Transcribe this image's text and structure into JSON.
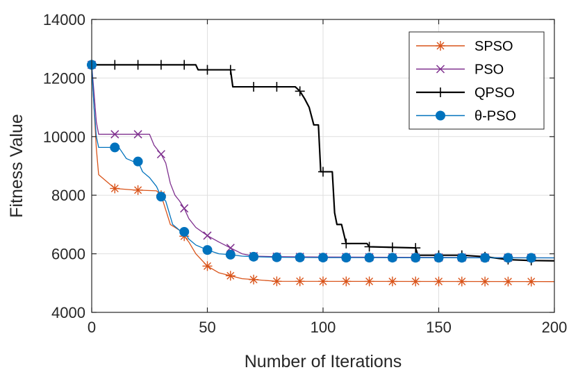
{
  "chart_data": {
    "type": "line",
    "title": "",
    "xlabel": "Number of Iterations",
    "ylabel": "Fitness Value",
    "xlim": [
      0,
      200
    ],
    "ylim": [
      4000,
      14000
    ],
    "xticks": [
      0,
      50,
      100,
      150,
      200
    ],
    "yticks": [
      4000,
      6000,
      8000,
      10000,
      12000,
      14000
    ],
    "grid": true,
    "legend_position": "top-right",
    "marker_x": [
      0,
      10,
      20,
      30,
      40,
      50,
      60,
      70,
      80,
      90,
      100,
      110,
      120,
      130,
      140,
      150,
      160,
      170,
      180,
      190
    ],
    "series": [
      {
        "name": "SPSO",
        "color": "#D95319",
        "marker": "asterisk",
        "x": [
          0,
          1,
          2,
          3,
          10,
          18,
          28,
          30,
          32,
          34,
          36,
          38,
          40,
          42,
          45,
          50,
          55,
          60,
          65,
          70,
          80,
          200
        ],
        "y": [
          12450,
          11000,
          9600,
          8700,
          8230,
          8180,
          8150,
          8000,
          7500,
          7000,
          6900,
          6800,
          6600,
          6400,
          6000,
          5580,
          5350,
          5250,
          5150,
          5120,
          5060,
          5050
        ]
      },
      {
        "name": "PSO",
        "color": "#7E2F8E",
        "marker": "x",
        "x": [
          0,
          1,
          2,
          3,
          4,
          25,
          27,
          30,
          32,
          34,
          36,
          38,
          40,
          42,
          45,
          50,
          55,
          60,
          65,
          70,
          80,
          100,
          170,
          200
        ],
        "y": [
          12450,
          11500,
          10500,
          10080,
          10080,
          10080,
          9700,
          9400,
          9100,
          8400,
          8000,
          7800,
          7550,
          7200,
          6900,
          6620,
          6400,
          6200,
          6000,
          5920,
          5900,
          5890,
          5870,
          5860
        ]
      },
      {
        "name": "QPSO",
        "color": "#000000",
        "marker": "plus",
        "x": [
          0,
          45,
          46,
          60,
          61,
          88,
          90,
          92,
          94,
          96,
          98,
          99,
          100,
          104,
          105,
          106,
          108,
          110,
          111,
          119,
          120,
          140,
          141,
          160,
          170,
          180,
          190,
          200
        ],
        "y": [
          12450,
          12450,
          12280,
          12280,
          11700,
          11700,
          11550,
          11300,
          11000,
          10400,
          10400,
          8800,
          8800,
          8800,
          7400,
          7000,
          7000,
          6350,
          6350,
          6350,
          6240,
          6200,
          5950,
          5950,
          5900,
          5800,
          5770,
          5760
        ]
      },
      {
        "name": "θ-PSO",
        "color": "#0072BD",
        "marker": "circle",
        "x": [
          0,
          1,
          2,
          3,
          10,
          12,
          15,
          18,
          20,
          22,
          25,
          28,
          30,
          32,
          35,
          38,
          40,
          42,
          45,
          50,
          55,
          60,
          65,
          70,
          80,
          100,
          200
        ],
        "y": [
          12450,
          11000,
          10000,
          9630,
          9630,
          9600,
          9250,
          9150,
          9150,
          8800,
          8600,
          8300,
          7950,
          7800,
          7000,
          6800,
          6750,
          6500,
          6300,
          6130,
          6000,
          5970,
          5920,
          5900,
          5880,
          5870,
          5860
        ]
      }
    ]
  }
}
